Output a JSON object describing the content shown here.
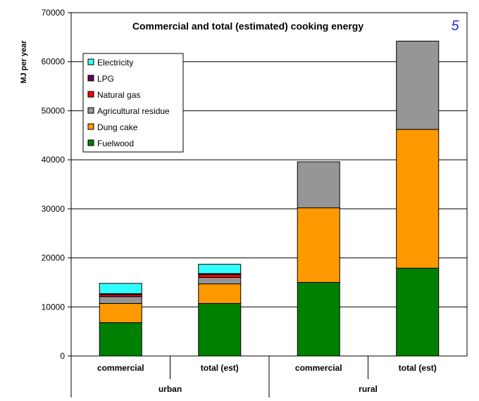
{
  "chart_data": {
    "type": "bar",
    "stacked": true,
    "title": "Commercial and total (estimated) cooking energy",
    "ylabel": "MJ per year",
    "xlabel": "",
    "ylim": [
      0,
      70000
    ],
    "yticks": [
      "0",
      "10000",
      "20000",
      "30000",
      "40000",
      "50000",
      "60000",
      "70000"
    ],
    "badge": "5",
    "grid": "horizontal",
    "legend_position": "top-left",
    "groups": [
      {
        "label": "urban",
        "categories": [
          "commercial",
          "total (est)"
        ]
      },
      {
        "label": "rural",
        "categories": [
          "commercial",
          "total (est)"
        ]
      }
    ],
    "categories": [
      "commercial",
      "total (est)",
      "commercial",
      "total (est)"
    ],
    "series": [
      {
        "name": "Fuelwood",
        "color": "#008000",
        "values": [
          6800,
          10700,
          15000,
          17900
        ]
      },
      {
        "name": "Dung cake",
        "color": "#ff9900",
        "values": [
          3900,
          4000,
          15200,
          28300
        ]
      },
      {
        "name": "Agricultural residue",
        "color": "#969696",
        "values": [
          1400,
          1300,
          9400,
          18000
        ]
      },
      {
        "name": "Natural gas",
        "color": "#ff0000",
        "values": [
          400,
          600,
          0,
          0
        ]
      },
      {
        "name": "LPG",
        "color": "#660066",
        "values": [
          200,
          200,
          0,
          0
        ]
      },
      {
        "name": "Electricity",
        "color": "#33ffff",
        "values": [
          2100,
          1900,
          0,
          0
        ]
      }
    ],
    "legend_order": [
      "Electricity",
      "LPG",
      "Natural gas",
      "Agricultural residue",
      "Dung cake",
      "Fuelwood"
    ]
  }
}
